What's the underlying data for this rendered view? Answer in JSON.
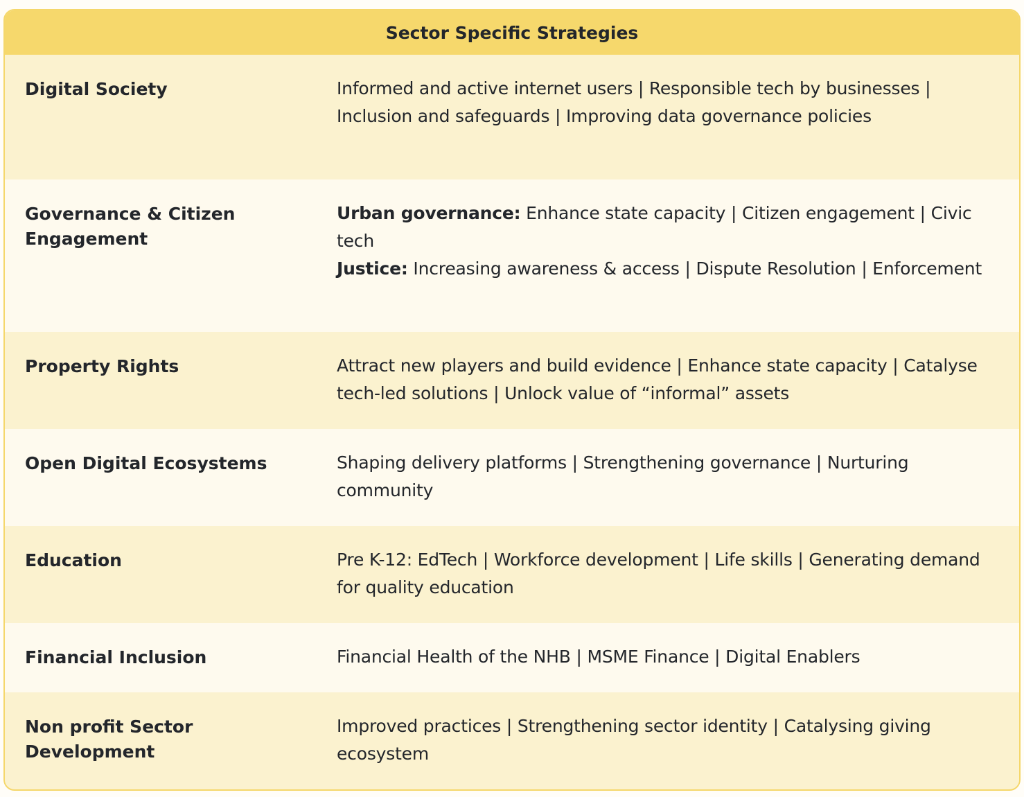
{
  "title": "Sector Specific Strategies",
  "colors": {
    "header": "#f6d86c",
    "row_alt_1": "#fbf2cf",
    "row_alt_2": "#fefaee",
    "border": "#f5d76b",
    "text": "#23262b"
  },
  "rows": [
    {
      "sector": "Digital Society",
      "segments": [
        {
          "label": "",
          "text": "Informed and active internet users | Responsible tech by businesses | Inclusion and safeguards | Improving data governance policies"
        }
      ]
    },
    {
      "sector": "Governance & Citizen Engagement",
      "segments": [
        {
          "label": "Urban governance:",
          "text": " Enhance state capacity | Citizen engagement | Civic tech"
        },
        {
          "label": "Justice:",
          "text": " Increasing awareness & access | Dispute Resolution | Enforcement"
        }
      ]
    },
    {
      "sector": "Property Rights",
      "segments": [
        {
          "label": "",
          "text": "Attract new players and build evidence | Enhance state capacity | Catalyse tech-led solutions | Unlock value of “informal” assets"
        }
      ]
    },
    {
      "sector": "Open Digital Ecosystems",
      "segments": [
        {
          "label": "",
          "text": "Shaping delivery platforms | Strengthening governance | Nurturing community"
        }
      ]
    },
    {
      "sector": "Education",
      "segments": [
        {
          "label": "",
          "text": "Pre K-12: EdTech | Workforce development | Life skills | Generating demand for quality education"
        }
      ]
    },
    {
      "sector": "Financial Inclusion",
      "segments": [
        {
          "label": "",
          "text": "Financial Health of the NHB | MSME Finance | Digital Enablers"
        }
      ]
    },
    {
      "sector": "Non profit Sector Development",
      "segments": [
        {
          "label": "",
          "text": "Improved practices | Strengthening sector identity | Catalysing giving ecosystem"
        }
      ]
    }
  ]
}
